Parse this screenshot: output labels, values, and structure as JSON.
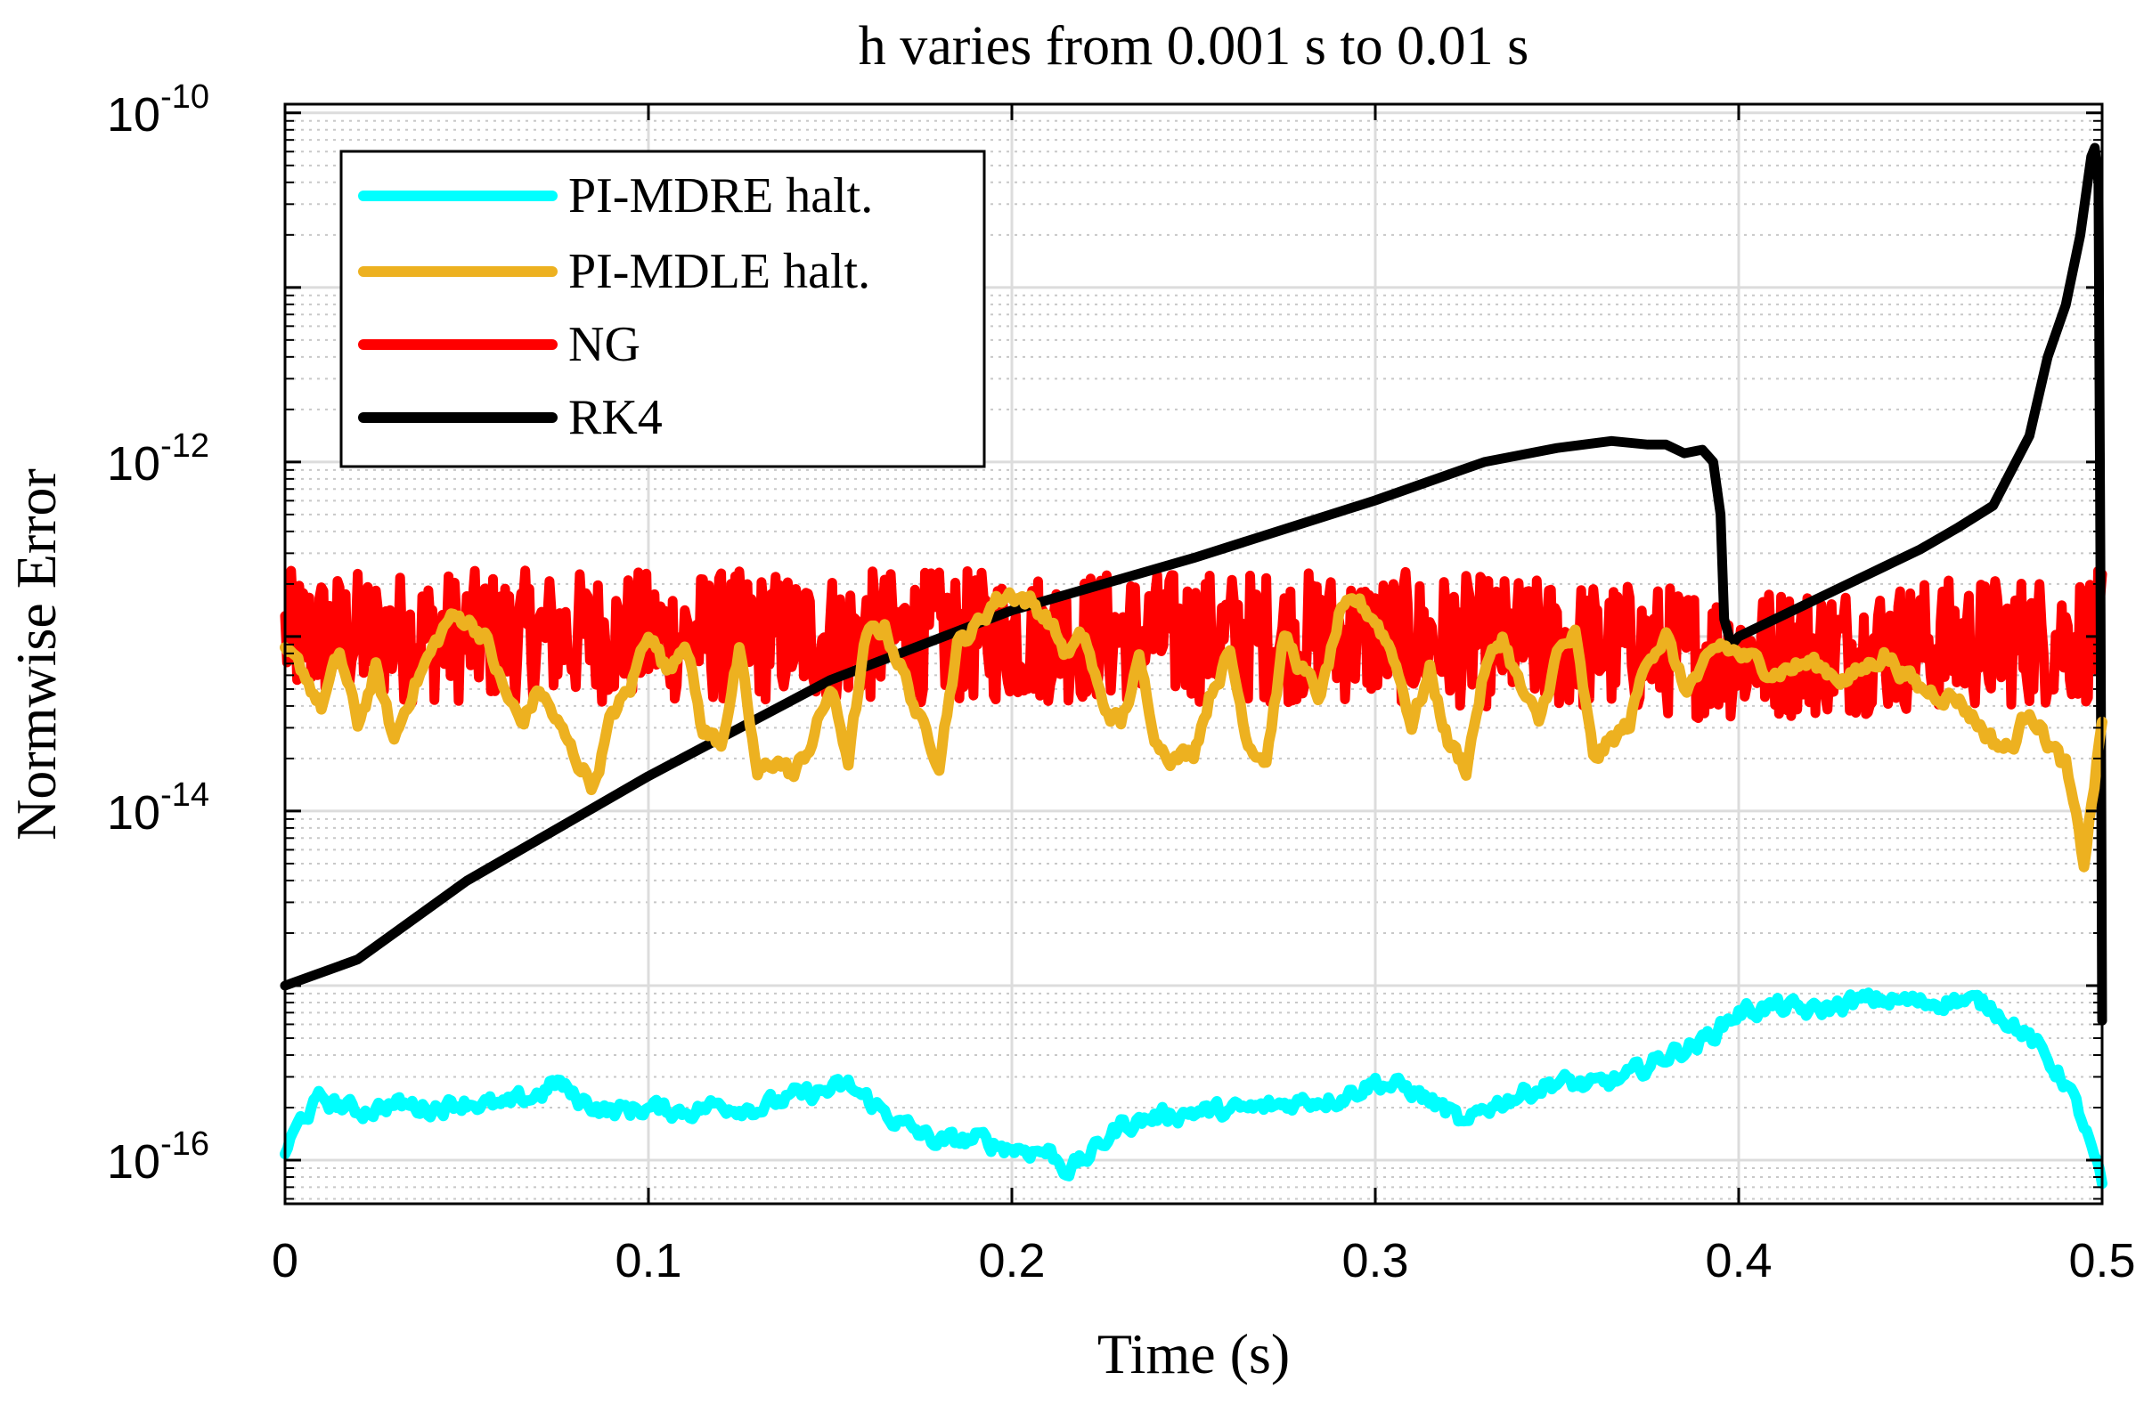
{
  "chart_data": {
    "type": "line",
    "title": "h varies from 0.001 s to 0.01 s",
    "xlabel": "Time (s)",
    "ylabel": "Normwise Error",
    "xlim": [
      0,
      0.5
    ],
    "ylim_log10": [
      -16.25,
      -9.95
    ],
    "yscale": "log",
    "grid": true,
    "minor_grid": true,
    "legend_position": "top-left",
    "x_ticks": [
      0,
      0.1,
      0.2,
      0.3,
      0.4,
      0.5
    ],
    "x_tick_labels": [
      "0",
      "0.1",
      "0.2",
      "0.3",
      "0.4",
      "0.5"
    ],
    "y_ticks_log10": [
      -16,
      -14,
      -12,
      -10
    ],
    "y_tick_bases": [
      "10",
      "10",
      "10",
      "10"
    ],
    "y_tick_exponents": [
      "-16",
      "-14",
      "-12",
      "-10"
    ],
    "series": [
      {
        "name": "PI-MDRE halt.",
        "color": "#00FFFF",
        "noise": 0.09,
        "x": [
          0,
          0.005,
          0.01,
          0.02,
          0.03,
          0.04,
          0.05,
          0.06,
          0.07,
          0.075,
          0.08,
          0.09,
          0.1,
          0.11,
          0.12,
          0.13,
          0.14,
          0.15,
          0.155,
          0.16,
          0.17,
          0.18,
          0.19,
          0.2,
          0.21,
          0.215,
          0.22,
          0.23,
          0.24,
          0.25,
          0.26,
          0.27,
          0.28,
          0.29,
          0.3,
          0.31,
          0.32,
          0.325,
          0.33,
          0.34,
          0.35,
          0.36,
          0.37,
          0.38,
          0.39,
          0.4,
          0.41,
          0.42,
          0.43,
          0.44,
          0.45,
          0.46,
          0.47,
          0.48,
          0.49,
          0.495,
          0.5
        ],
        "log10y": [
          -15.95,
          -15.75,
          -15.65,
          -15.72,
          -15.68,
          -15.7,
          -15.66,
          -15.7,
          -15.62,
          -15.55,
          -15.65,
          -15.72,
          -15.7,
          -15.72,
          -15.68,
          -15.7,
          -15.64,
          -15.6,
          -15.58,
          -15.65,
          -15.8,
          -15.9,
          -15.88,
          -15.93,
          -15.95,
          -16.05,
          -16.0,
          -15.8,
          -15.75,
          -15.72,
          -15.72,
          -15.7,
          -15.66,
          -15.64,
          -15.55,
          -15.6,
          -15.72,
          -15.82,
          -15.7,
          -15.62,
          -15.55,
          -15.58,
          -15.52,
          -15.4,
          -15.32,
          -15.15,
          -15.12,
          -15.15,
          -15.1,
          -15.08,
          -15.1,
          -15.08,
          -15.12,
          -15.3,
          -15.55,
          -15.8,
          -16.15
        ]
      },
      {
        "name": "PI-MDLE halt.",
        "color": "#EDB120",
        "noise": 0.09,
        "x": [
          0,
          0.005,
          0.01,
          0.015,
          0.02,
          0.025,
          0.03,
          0.035,
          0.04,
          0.045,
          0.05,
          0.055,
          0.06,
          0.065,
          0.07,
          0.075,
          0.08,
          0.085,
          0.09,
          0.095,
          0.1,
          0.105,
          0.11,
          0.115,
          0.12,
          0.125,
          0.13,
          0.135,
          0.14,
          0.145,
          0.15,
          0.155,
          0.16,
          0.165,
          0.17,
          0.175,
          0.18,
          0.185,
          0.19,
          0.195,
          0.2,
          0.205,
          0.21,
          0.215,
          0.22,
          0.225,
          0.23,
          0.235,
          0.24,
          0.245,
          0.25,
          0.255,
          0.26,
          0.265,
          0.27,
          0.275,
          0.28,
          0.285,
          0.29,
          0.295,
          0.3,
          0.305,
          0.31,
          0.315,
          0.32,
          0.325,
          0.33,
          0.335,
          0.34,
          0.345,
          0.35,
          0.355,
          0.36,
          0.365,
          0.37,
          0.375,
          0.38,
          0.385,
          0.39,
          0.395,
          0.4,
          0.41,
          0.42,
          0.43,
          0.44,
          0.45,
          0.46,
          0.47,
          0.475,
          0.48,
          0.485,
          0.49,
          0.495,
          0.5
        ],
        "log10y": [
          -13.1,
          -13.2,
          -13.4,
          -13.1,
          -13.5,
          -13.2,
          -13.6,
          -13.3,
          -13.1,
          -12.9,
          -12.9,
          -13.0,
          -13.3,
          -13.5,
          -13.3,
          -13.5,
          -13.7,
          -13.85,
          -13.45,
          -13.3,
          -12.95,
          -13.2,
          -13.0,
          -13.55,
          -13.6,
          -13.1,
          -13.8,
          -13.7,
          -13.8,
          -13.6,
          -13.3,
          -13.7,
          -13.0,
          -12.95,
          -13.2,
          -13.5,
          -13.7,
          -13.05,
          -12.95,
          -12.8,
          -12.75,
          -12.8,
          -12.9,
          -13.1,
          -13.0,
          -13.4,
          -13.5,
          -13.15,
          -13.6,
          -13.7,
          -13.65,
          -13.3,
          -13.1,
          -13.6,
          -13.7,
          -13.0,
          -13.2,
          -13.35,
          -12.9,
          -12.8,
          -12.9,
          -13.1,
          -13.5,
          -13.2,
          -13.6,
          -13.75,
          -13.2,
          -13.0,
          -13.3,
          -13.5,
          -13.1,
          -13.0,
          -13.7,
          -13.6,
          -13.5,
          -13.1,
          -13.0,
          -13.3,
          -13.2,
          -13.05,
          -13.1,
          -13.2,
          -13.15,
          -13.25,
          -13.1,
          -13.3,
          -13.35,
          -13.6,
          -13.65,
          -13.4,
          -13.6,
          -13.75,
          -14.3,
          -13.5
        ]
      },
      {
        "name": "NG",
        "color": "#FF0000",
        "noise": 0.38,
        "x": [
          0,
          0.1,
          0.2,
          0.3,
          0.4,
          0.45,
          0.5
        ],
        "log10y": [
          -13.0,
          -13.0,
          -13.0,
          -13.0,
          -13.1,
          -13.05,
          -13.0
        ]
      },
      {
        "name": "RK4",
        "color": "#000000",
        "noise": 0.0,
        "x": [
          0,
          0.02,
          0.05,
          0.1,
          0.15,
          0.2,
          0.25,
          0.3,
          0.33,
          0.35,
          0.365,
          0.375,
          0.38,
          0.385,
          0.39,
          0.393,
          0.395,
          0.396,
          0.398,
          0.4,
          0.41,
          0.42,
          0.43,
          0.44,
          0.45,
          0.46,
          0.47,
          0.48,
          0.485,
          0.49,
          0.494,
          0.497,
          0.498,
          0.499,
          0.4995,
          0.5
        ],
        "log10y": [
          -15.0,
          -14.85,
          -14.4,
          -13.8,
          -13.25,
          -12.85,
          -12.55,
          -12.22,
          -12.0,
          -11.92,
          -11.88,
          -11.9,
          -11.9,
          -11.95,
          -11.93,
          -12.0,
          -12.3,
          -12.9,
          -13.05,
          -13.0,
          -12.9,
          -12.8,
          -12.7,
          -12.6,
          -12.5,
          -12.38,
          -12.25,
          -11.85,
          -11.4,
          -11.1,
          -10.7,
          -10.25,
          -10.2,
          -10.4,
          -12.5,
          -15.2
        ]
      }
    ]
  }
}
